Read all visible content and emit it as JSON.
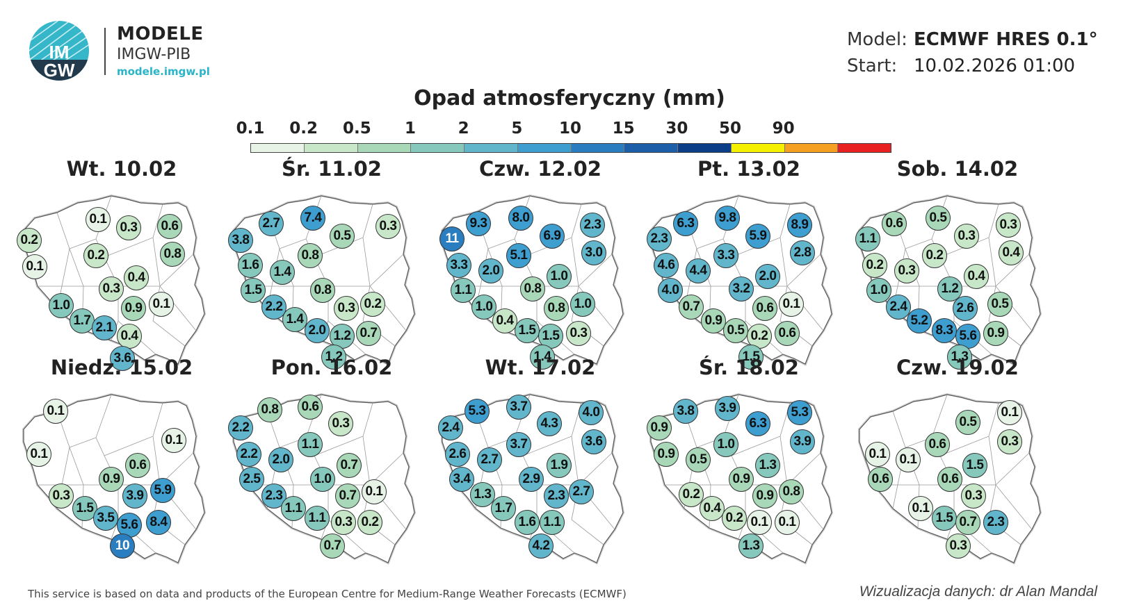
{
  "logo": {
    "title": "MODELE",
    "subtitle": "IMGW-PIB",
    "url": "modele.imgw.pl",
    "badge_top": "IM",
    "badge_bottom": "GW"
  },
  "info": {
    "model_label": "Model:",
    "model_value": "ECMWF HRES 0.1°",
    "start_label": "Start:",
    "start_value": "10.02.2026 01:00"
  },
  "legend": {
    "title": "Opad atmosferyczny (mm)",
    "ticks": [
      "0.1",
      "0.2",
      "0.5",
      "1",
      "2",
      "5",
      "10",
      "15",
      "30",
      "50",
      "90"
    ],
    "colors": [
      "#e6f3e6",
      "#c8e6c8",
      "#a8d8b8",
      "#86c8bc",
      "#62b6cc",
      "#3e9ed0",
      "#2a7ec0",
      "#1c5ea8",
      "#0c3e88",
      "#f5f000",
      "#f5a020",
      "#e82020"
    ]
  },
  "footer": {
    "left": "This service is based on data and products of the European Centre for Medium-Range Weather Forecasts (ECMWF)",
    "right": "Wizualizacja danych: dr Alan Mandal"
  },
  "panels": [
    {
      "title": "Wt. 10.02",
      "values": [
        {
          "v": "0.1"
        },
        {
          "v": "0.3"
        },
        {
          "v": "0.6"
        },
        {
          "v": "0.2"
        },
        {
          "v": "0.2"
        },
        {
          "v": "0.8"
        },
        {
          "v": "0.1"
        },
        {
          "v": "0.4"
        },
        {
          "v": "0.3"
        },
        {
          "v": "1.0"
        },
        {
          "v": "0.9"
        },
        {
          "v": "0.1"
        },
        {
          "v": "1.7"
        },
        {
          "v": "2.1"
        },
        {
          "v": "0.4"
        },
        {
          "v": "3.6"
        }
      ]
    },
    {
      "title": "Śr. 11.02",
      "values": [
        {
          "v": "7.4"
        },
        {
          "v": "2.7"
        },
        {
          "v": "0.5"
        },
        {
          "v": "0.3"
        },
        {
          "v": "3.8"
        },
        {
          "v": "0.8"
        },
        {
          "v": "1.6"
        },
        {
          "v": "1.4"
        },
        {
          "v": "1.5"
        },
        {
          "v": "0.8"
        },
        {
          "v": "2.2"
        },
        {
          "v": "0.3"
        },
        {
          "v": "0.2"
        },
        {
          "v": "1.4"
        },
        {
          "v": "2.0"
        },
        {
          "v": "1.2"
        },
        {
          "v": "0.7"
        },
        {
          "v": "1.2"
        }
      ]
    },
    {
      "title": "Czw. 12.02",
      "values": [
        {
          "v": "8.0"
        },
        {
          "v": "9.3"
        },
        {
          "v": "6.9"
        },
        {
          "v": "2.3"
        },
        {
          "v": "11"
        },
        {
          "v": "5.1"
        },
        {
          "v": "3.0"
        },
        {
          "v": "3.3"
        },
        {
          "v": "2.0"
        },
        {
          "v": "1.0"
        },
        {
          "v": "1.1"
        },
        {
          "v": "0.8"
        },
        {
          "v": "1.0"
        },
        {
          "v": "0.8"
        },
        {
          "v": "1.0"
        },
        {
          "v": "0.4"
        },
        {
          "v": "1.5"
        },
        {
          "v": "1.5"
        },
        {
          "v": "0.3"
        },
        {
          "v": "1.4"
        }
      ]
    },
    {
      "title": "Pt. 13.02",
      "values": [
        {
          "v": "9.8"
        },
        {
          "v": "6.3"
        },
        {
          "v": "5.9"
        },
        {
          "v": "8.9"
        },
        {
          "v": "2.3"
        },
        {
          "v": "3.3"
        },
        {
          "v": "2.8"
        },
        {
          "v": "4.6"
        },
        {
          "v": "4.4"
        },
        {
          "v": "2.0"
        },
        {
          "v": "4.0"
        },
        {
          "v": "3.2"
        },
        {
          "v": "0.7"
        },
        {
          "v": "0.6"
        },
        {
          "v": "0.1"
        },
        {
          "v": "0.9"
        },
        {
          "v": "0.5"
        },
        {
          "v": "0.2"
        },
        {
          "v": "0.6"
        },
        {
          "v": "1.5"
        }
      ]
    },
    {
      "title": "Sob. 14.02",
      "values": [
        {
          "v": "0.5"
        },
        {
          "v": "0.6"
        },
        {
          "v": "0.3"
        },
        {
          "v": "0.3"
        },
        {
          "v": "1.1"
        },
        {
          "v": "0.2"
        },
        {
          "v": "0.4"
        },
        {
          "v": "0.2"
        },
        {
          "v": "0.3"
        },
        {
          "v": "0.4"
        },
        {
          "v": "1.0"
        },
        {
          "v": "1.2"
        },
        {
          "v": "2.4"
        },
        {
          "v": "2.6"
        },
        {
          "v": "0.5"
        },
        {
          "v": "5.2"
        },
        {
          "v": "8.3"
        },
        {
          "v": "5.6"
        },
        {
          "v": "0.9"
        },
        {
          "v": "1.3"
        }
      ]
    },
    {
      "title": "Niedz. 15.02",
      "values": [
        {
          "v": "0.1"
        },
        {
          "v": "0.1"
        },
        {
          "v": "0.1"
        },
        {
          "v": "0.6"
        },
        {
          "v": "0.9"
        },
        {
          "v": "5.9"
        },
        {
          "v": "0.3"
        },
        {
          "v": "3.9"
        },
        {
          "v": "1.5"
        },
        {
          "v": "3.5"
        },
        {
          "v": "5.6"
        },
        {
          "v": "8.4"
        },
        {
          "v": "10"
        }
      ]
    },
    {
      "title": "Pon. 16.02",
      "values": [
        {
          "v": "0.8"
        },
        {
          "v": "0.6"
        },
        {
          "v": "2.2"
        },
        {
          "v": "0.3"
        },
        {
          "v": "1.1"
        },
        {
          "v": "2.2"
        },
        {
          "v": "2.0"
        },
        {
          "v": "0.7"
        },
        {
          "v": "2.5"
        },
        {
          "v": "1.0"
        },
        {
          "v": "0.1"
        },
        {
          "v": "2.3"
        },
        {
          "v": "0.7"
        },
        {
          "v": "1.1"
        },
        {
          "v": "1.1"
        },
        {
          "v": "0.3"
        },
        {
          "v": "0.2"
        },
        {
          "v": "0.7"
        }
      ]
    },
    {
      "title": "Wt. 17.02",
      "values": [
        {
          "v": "3.7"
        },
        {
          "v": "5.3"
        },
        {
          "v": "4.0"
        },
        {
          "v": "4.3"
        },
        {
          "v": "2.4"
        },
        {
          "v": "3.6"
        },
        {
          "v": "3.7"
        },
        {
          "v": "2.6"
        },
        {
          "v": "2.7"
        },
        {
          "v": "1.9"
        },
        {
          "v": "3.4"
        },
        {
          "v": "2.9"
        },
        {
          "v": "1.3"
        },
        {
          "v": "2.3"
        },
        {
          "v": "2.7"
        },
        {
          "v": "1.7"
        },
        {
          "v": "1.6"
        },
        {
          "v": "1.1"
        },
        {
          "v": "4.2"
        }
      ]
    },
    {
      "title": "Śr. 18.02",
      "values": [
        {
          "v": "3.9"
        },
        {
          "v": "3.8"
        },
        {
          "v": "5.3"
        },
        {
          "v": "6.3"
        },
        {
          "v": "0.9"
        },
        {
          "v": "3.9"
        },
        {
          "v": "1.0"
        },
        {
          "v": "0.9"
        },
        {
          "v": "0.5"
        },
        {
          "v": "1.3"
        },
        {
          "v": "0.9"
        },
        {
          "v": "0.2"
        },
        {
          "v": "0.9"
        },
        {
          "v": "0.8"
        },
        {
          "v": "0.4"
        },
        {
          "v": "0.2"
        },
        {
          "v": "0.1"
        },
        {
          "v": "0.1"
        },
        {
          "v": "1.3"
        }
      ]
    },
    {
      "title": "Czw. 19.02",
      "values": [
        {
          "v": "0.1"
        },
        {
          "v": "0.5"
        },
        {
          "v": "0.3"
        },
        {
          "v": "0.6"
        },
        {
          "v": "0.1"
        },
        {
          "v": "0.1"
        },
        {
          "v": "1.5"
        },
        {
          "v": "0.6"
        },
        {
          "v": "0.6"
        },
        {
          "v": "0.3"
        },
        {
          "v": "0.1"
        },
        {
          "v": "1.5"
        },
        {
          "v": "0.7"
        },
        {
          "v": "2.3"
        },
        {
          "v": "0.3"
        }
      ]
    }
  ]
}
